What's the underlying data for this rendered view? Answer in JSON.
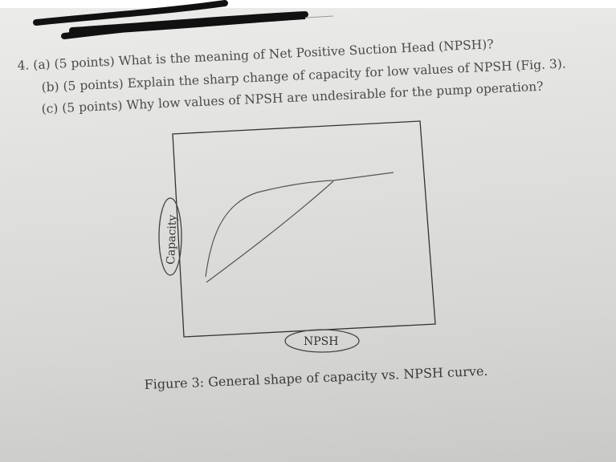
{
  "question": {
    "number": "4.",
    "parts": [
      {
        "label": "(a)",
        "points": "(5 points)",
        "text": "What is the meaning of Net Positive Suction Head (NPSH)?"
      },
      {
        "label": "(b)",
        "points": "(5 points)",
        "text": "Explain the sharp change of capacity for low values of NPSH (Fig. 3)."
      },
      {
        "label": "(c)",
        "points": "(5 points)",
        "text": "Why low values of NPSH are undesirable for the pump operation?"
      }
    ]
  },
  "figure": {
    "ylabel": "Capacity",
    "xlabel": "NPSH",
    "caption": "Figure 3: General shape of capacity vs. NPSH curve."
  }
}
